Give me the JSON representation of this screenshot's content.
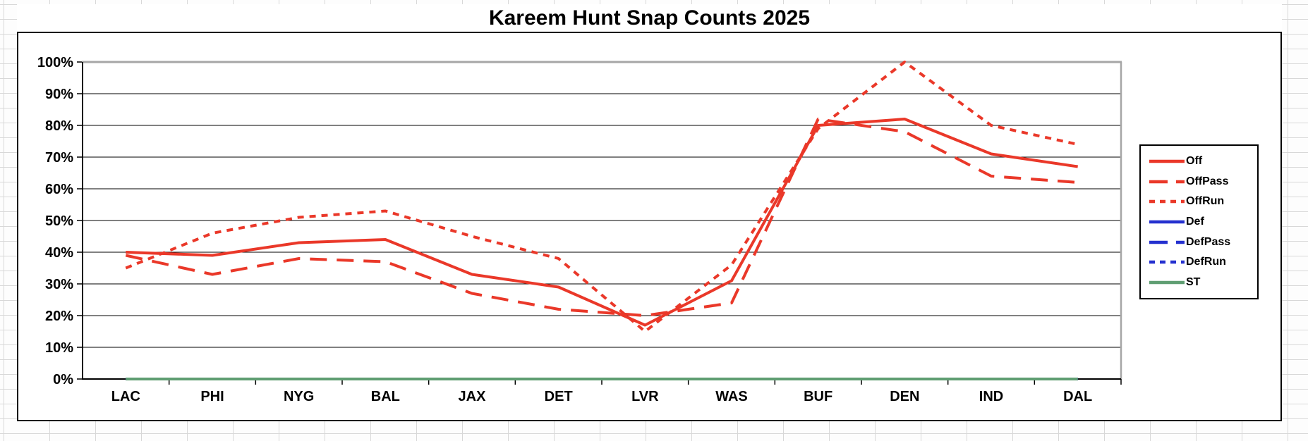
{
  "chart": {
    "title": "Kareem Hunt Snap Counts 2025"
  },
  "chart_data": {
    "type": "line",
    "title": "Kareem Hunt Snap Counts 2025",
    "xlabel": "",
    "ylabel": "",
    "ylim": [
      0,
      100
    ],
    "grid": true,
    "legend_position": "right",
    "y_ticks": [
      "0%",
      "10%",
      "20%",
      "30%",
      "40%",
      "50%",
      "60%",
      "70%",
      "80%",
      "90%",
      "100%"
    ],
    "categories": [
      "LAC",
      "PHI",
      "NYG",
      "BAL",
      "JAX",
      "DET",
      "LVR",
      "WAS",
      "BUF",
      "DEN",
      "IND",
      "DAL"
    ],
    "series": [
      {
        "name": "Off",
        "color": "#ea3829",
        "dash": "solid",
        "values": [
          40,
          39,
          43,
          44,
          33,
          29,
          17,
          31,
          80,
          82,
          71,
          67
        ]
      },
      {
        "name": "OffPass",
        "color": "#ea3829",
        "dash": "long",
        "values": [
          39,
          33,
          38,
          37,
          27,
          22,
          20,
          24,
          82,
          78,
          64,
          62
        ]
      },
      {
        "name": "OffRun",
        "color": "#ea3829",
        "dash": "short",
        "values": [
          35,
          46,
          51,
          53,
          45,
          38,
          15,
          36,
          79,
          100,
          80,
          74
        ]
      },
      {
        "name": "Def",
        "color": "#2430cf",
        "dash": "solid",
        "values": [
          0,
          0,
          0,
          0,
          0,
          0,
          0,
          0,
          0,
          0,
          0,
          0
        ]
      },
      {
        "name": "DefPass",
        "color": "#2430cf",
        "dash": "long",
        "values": [
          0,
          0,
          0,
          0,
          0,
          0,
          0,
          0,
          0,
          0,
          0,
          0
        ]
      },
      {
        "name": "DefRun",
        "color": "#2430cf",
        "dash": "short",
        "values": [
          0,
          0,
          0,
          0,
          0,
          0,
          0,
          0,
          0,
          0,
          0,
          0
        ]
      },
      {
        "name": "ST",
        "color": "#5f9e72",
        "dash": "solid",
        "values": [
          0,
          0,
          0,
          0,
          0,
          0,
          0,
          0,
          0,
          0,
          0,
          0
        ]
      }
    ],
    "colors": {
      "offense": "#ea3829",
      "defense": "#2430cf",
      "special_teams": "#5f9e72",
      "gridline": "#000000",
      "plot_border": "#a6a6a6"
    }
  }
}
